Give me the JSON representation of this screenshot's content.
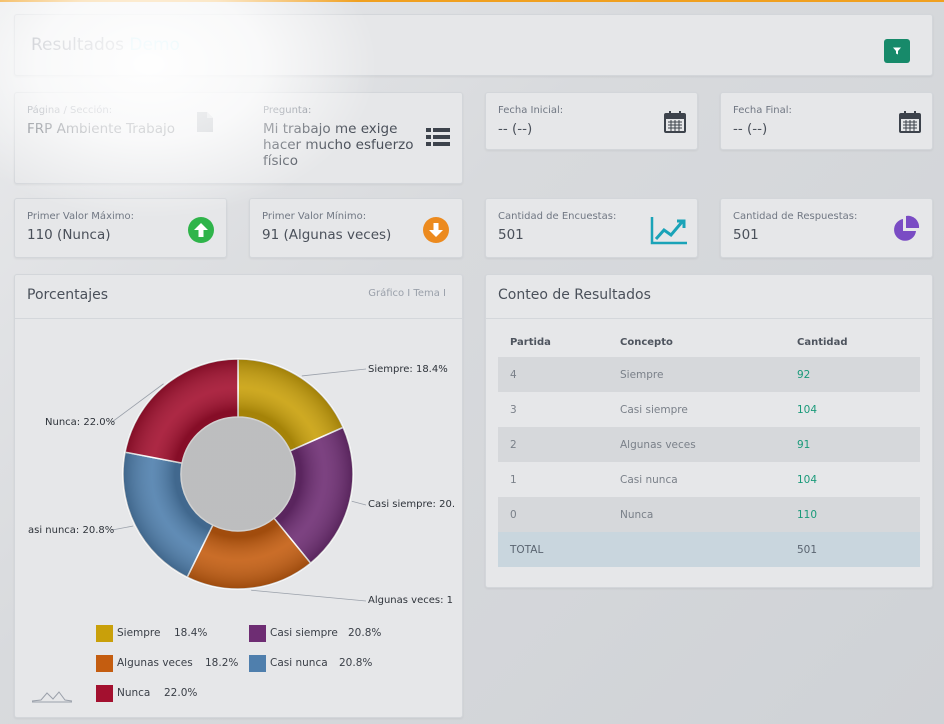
{
  "header": {
    "title_main": "Resultados",
    "title_accent": "Demo"
  },
  "filters": {
    "pagina": {
      "label": "Página / Sección:",
      "value": "FRP Ambiente Trabajo"
    },
    "pregunta": {
      "label": "Pregunta:",
      "line1": "Mi trabajo me exige",
      "line2": "hacer mucho esfuerzo",
      "line3": "físico"
    },
    "fecha_inicial": {
      "label": "Fecha Inicial:",
      "value": "-- (--)"
    },
    "fecha_final": {
      "label": "Fecha Final:",
      "value": "-- (--)"
    }
  },
  "stats": {
    "max": {
      "label": "Primer Valor Máximo:",
      "value": "110 (Nunca)"
    },
    "min": {
      "label": "Primer Valor Mínimo:",
      "value": "91 (Algunas veces)"
    },
    "encuestas": {
      "label": "Cantidad de Encuestas:",
      "value": "501"
    },
    "respuestas": {
      "label": "Cantidad de Respuestas:",
      "value": "501"
    }
  },
  "percent_panel": {
    "title": "Porcentajes",
    "tab_grafico": "Gráfico",
    "tab_tema": "Tema",
    "slice_labels": [
      "Siempre: 18.4%",
      "Casi siempre: 20.",
      "Algunas veces: 1",
      "asi nunca: 20.8%",
      "Nunca: 22.0%"
    ],
    "legend": [
      {
        "name": "Siempre",
        "pct": "18.4%"
      },
      {
        "name": "Casi siempre",
        "pct": "20.8%"
      },
      {
        "name": "Algunas veces",
        "pct": "18.2%"
      },
      {
        "name": "Casi nunca",
        "pct": "20.8%"
      },
      {
        "name": "Nunca",
        "pct": "22.0%"
      }
    ]
  },
  "chart_data": {
    "type": "pie",
    "categories": [
      "Siempre",
      "Casi siempre",
      "Algunas veces",
      "Casi nunca",
      "Nunca"
    ],
    "values": [
      18.4,
      20.8,
      18.2,
      20.8,
      22.0
    ],
    "colors": [
      "#c9a00a",
      "#6e2d73",
      "#c45d10",
      "#4f7fad",
      "#a3102f"
    ],
    "donut": true
  },
  "results": {
    "title": "Conteo de Resultados",
    "columns": [
      "Partida",
      "Concepto",
      "Cantidad"
    ],
    "rows": [
      {
        "partida": "4",
        "concepto": "Siempre",
        "cantidad": "92"
      },
      {
        "partida": "3",
        "concepto": "Casi siempre",
        "cantidad": "104"
      },
      {
        "partida": "2",
        "concepto": "Algunas veces",
        "cantidad": "91"
      },
      {
        "partida": "1",
        "concepto": "Casi nunca",
        "cantidad": "104"
      },
      {
        "partida": "0",
        "concepto": "Nunca",
        "cantidad": "110"
      }
    ],
    "total": {
      "label": "TOTAL",
      "value": "501"
    }
  },
  "colors": {
    "accent": "#7fd6e9",
    "filter_button": "#178a6a",
    "up_arrow": "#2fb44a",
    "down_arrow": "#ec8a1e",
    "trend": "#1aa3b8",
    "pie_icon": "#7a4cc4"
  },
  "icons": [
    "filter-icon",
    "document-icon",
    "list-icon",
    "calendar-icon",
    "arrow-up-icon",
    "arrow-down-icon",
    "trend-chart-icon",
    "pie-chart-icon"
  ]
}
